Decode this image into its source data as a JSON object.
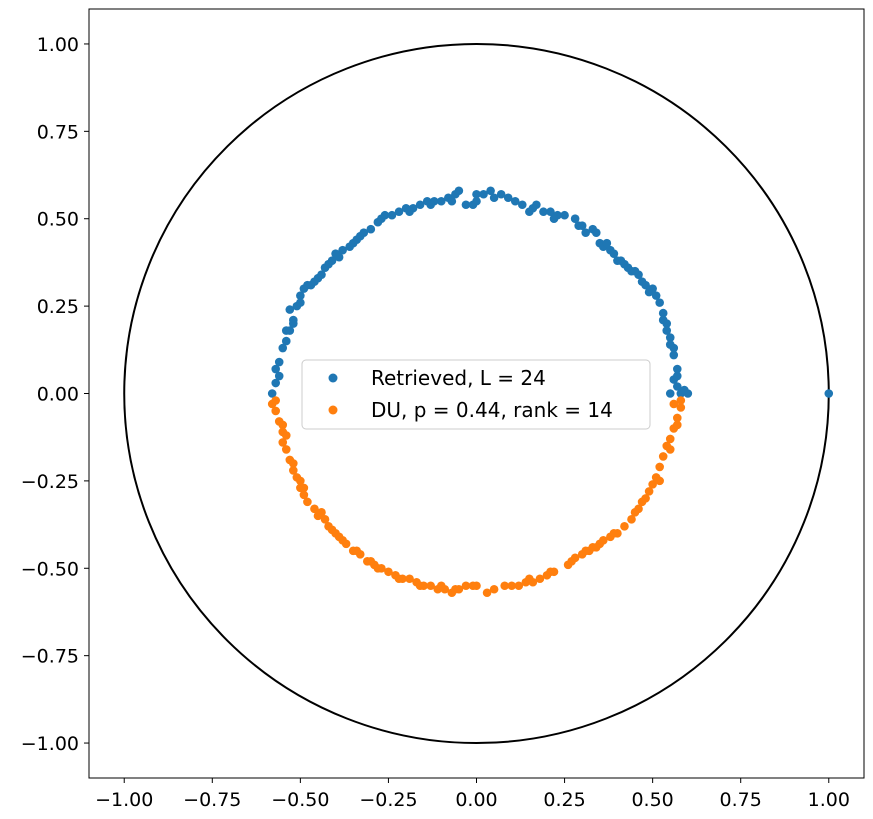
{
  "chart_data": {
    "type": "scatter",
    "title": "",
    "xlabel": "",
    "ylabel": "",
    "xlim": [
      -1.1,
      1.1
    ],
    "ylim": [
      -1.1,
      1.1
    ],
    "xticks": [
      "−1.00",
      "−0.75",
      "−0.50",
      "−0.25",
      "0.00",
      "0.25",
      "0.50",
      "0.75",
      "1.00"
    ],
    "yticks": [
      "1.00",
      "0.75",
      "0.50",
      "0.25",
      "0.00",
      "−0.25",
      "−0.50",
      "−0.75",
      "−1.00"
    ],
    "grid": false,
    "legend_position": "center",
    "reference_circle": {
      "center": [
        0,
        0
      ],
      "radius": 1.0,
      "color": "#000000"
    },
    "series": [
      {
        "name": "Retrieved, L = 24",
        "color": "#1f77b4",
        "marker": "circle",
        "points": [
          [
            -0.58,
            0.0
          ],
          [
            -0.57,
            0.03
          ],
          [
            -0.57,
            0.07
          ],
          [
            -0.56,
            0.09
          ],
          [
            -0.55,
            0.13
          ],
          [
            -0.54,
            0.15
          ],
          [
            -0.53,
            0.18
          ],
          [
            -0.52,
            0.21
          ],
          [
            -0.52,
            0.2
          ],
          [
            -0.51,
            0.25
          ],
          [
            -0.5,
            0.28
          ],
          [
            -0.49,
            0.3
          ],
          [
            -0.48,
            0.31
          ],
          [
            -0.47,
            0.31
          ],
          [
            -0.45,
            0.33
          ],
          [
            -0.44,
            0.34
          ],
          [
            -0.43,
            0.36
          ],
          [
            -0.42,
            0.37
          ],
          [
            -0.41,
            0.38
          ],
          [
            -0.39,
            0.39
          ],
          [
            -0.38,
            0.41
          ],
          [
            -0.36,
            0.42
          ],
          [
            -0.35,
            0.43
          ],
          [
            -0.33,
            0.45
          ],
          [
            -0.32,
            0.46
          ],
          [
            -0.3,
            0.47
          ],
          [
            -0.28,
            0.49
          ],
          [
            -0.26,
            0.51
          ],
          [
            -0.24,
            0.51
          ],
          [
            -0.22,
            0.52
          ],
          [
            -0.2,
            0.53
          ],
          [
            -0.18,
            0.53
          ],
          [
            -0.16,
            0.54
          ],
          [
            -0.14,
            0.55
          ],
          [
            -0.12,
            0.55
          ],
          [
            -0.1,
            0.55
          ],
          [
            -0.08,
            0.56
          ],
          [
            -0.06,
            0.57
          ],
          [
            -0.05,
            0.58
          ],
          [
            -0.03,
            0.54
          ],
          [
            -0.01,
            0.54
          ],
          [
            0.0,
            0.57
          ],
          [
            0.02,
            0.57
          ],
          [
            0.04,
            0.58
          ],
          [
            0.05,
            0.56
          ],
          [
            0.07,
            0.57
          ],
          [
            0.11,
            0.55
          ],
          [
            0.13,
            0.54
          ],
          [
            0.15,
            0.52
          ],
          [
            0.17,
            0.54
          ],
          [
            0.19,
            0.52
          ],
          [
            0.21,
            0.52
          ],
          [
            0.23,
            0.51
          ],
          [
            0.25,
            0.51
          ],
          [
            0.28,
            0.5
          ],
          [
            0.29,
            0.48
          ],
          [
            0.31,
            0.46
          ],
          [
            0.33,
            0.47
          ],
          [
            0.34,
            0.46
          ],
          [
            0.35,
            0.43
          ],
          [
            0.36,
            0.42
          ],
          [
            0.38,
            0.41
          ],
          [
            0.39,
            0.4
          ],
          [
            0.4,
            0.38
          ],
          [
            0.42,
            0.37
          ],
          [
            0.43,
            0.36
          ],
          [
            0.44,
            0.35
          ],
          [
            0.46,
            0.34
          ],
          [
            0.47,
            0.32
          ],
          [
            0.48,
            0.31
          ],
          [
            0.49,
            0.29
          ],
          [
            0.51,
            0.28
          ],
          [
            0.52,
            0.26
          ],
          [
            0.53,
            0.23
          ],
          [
            0.54,
            0.2
          ],
          [
            0.54,
            0.18
          ],
          [
            0.55,
            0.16
          ],
          [
            0.56,
            0.13
          ],
          [
            0.56,
            0.11
          ],
          [
            0.57,
            0.07
          ],
          [
            0.56,
            0.04
          ],
          [
            0.57,
            0.02
          ],
          [
            0.58,
            0.0
          ],
          [
            0.6,
            0.0
          ],
          [
            1.0,
            0.0
          ],
          [
            -0.54,
            0.18
          ],
          [
            -0.5,
            0.26
          ],
          [
            -0.46,
            0.32
          ],
          [
            -0.4,
            0.4
          ],
          [
            -0.34,
            0.44
          ],
          [
            -0.27,
            0.5
          ],
          [
            -0.19,
            0.52
          ],
          [
            -0.13,
            0.54
          ],
          [
            -0.07,
            0.55
          ],
          [
            0.0,
            0.55
          ],
          [
            0.09,
            0.56
          ],
          [
            0.16,
            0.53
          ],
          [
            0.22,
            0.5
          ],
          [
            0.3,
            0.48
          ],
          [
            0.37,
            0.43
          ],
          [
            0.41,
            0.38
          ],
          [
            0.45,
            0.35
          ],
          [
            0.5,
            0.3
          ],
          [
            0.53,
            0.21
          ],
          [
            0.55,
            0.14
          ],
          [
            -0.56,
            0.05
          ],
          [
            0.57,
            0.05
          ],
          [
            0.55,
            0.0
          ],
          [
            0.59,
            0.01
          ],
          [
            -0.53,
            0.24
          ]
        ]
      },
      {
        "name": "DU, p = 0.44, rank = 14",
        "color": "#ff7f0e",
        "marker": "circle",
        "points": [
          [
            -0.58,
            -0.03
          ],
          [
            -0.57,
            -0.05
          ],
          [
            -0.56,
            -0.08
          ],
          [
            -0.55,
            -0.11
          ],
          [
            -0.55,
            -0.14
          ],
          [
            -0.54,
            -0.16
          ],
          [
            -0.53,
            -0.19
          ],
          [
            -0.52,
            -0.22
          ],
          [
            -0.51,
            -0.24
          ],
          [
            -0.5,
            -0.27
          ],
          [
            -0.49,
            -0.29
          ],
          [
            -0.48,
            -0.31
          ],
          [
            -0.46,
            -0.33
          ],
          [
            -0.45,
            -0.35
          ],
          [
            -0.43,
            -0.36
          ],
          [
            -0.42,
            -0.38
          ],
          [
            -0.4,
            -0.4
          ],
          [
            -0.38,
            -0.42
          ],
          [
            -0.37,
            -0.43
          ],
          [
            -0.35,
            -0.45
          ],
          [
            -0.33,
            -0.46
          ],
          [
            -0.31,
            -0.48
          ],
          [
            -0.29,
            -0.49
          ],
          [
            -0.27,
            -0.5
          ],
          [
            -0.25,
            -0.51
          ],
          [
            -0.23,
            -0.52
          ],
          [
            -0.21,
            -0.53
          ],
          [
            -0.19,
            -0.53
          ],
          [
            -0.17,
            -0.54
          ],
          [
            -0.15,
            -0.55
          ],
          [
            -0.13,
            -0.55
          ],
          [
            -0.11,
            -0.56
          ],
          [
            -0.09,
            -0.56
          ],
          [
            -0.07,
            -0.57
          ],
          [
            -0.05,
            -0.56
          ],
          [
            -0.03,
            -0.55
          ],
          [
            -0.01,
            -0.55
          ],
          [
            0.03,
            -0.57
          ],
          [
            0.05,
            -0.56
          ],
          [
            0.1,
            -0.55
          ],
          [
            0.12,
            -0.55
          ],
          [
            0.14,
            -0.54
          ],
          [
            0.16,
            -0.54
          ],
          [
            0.18,
            -0.53
          ],
          [
            0.2,
            -0.52
          ],
          [
            0.22,
            -0.51
          ],
          [
            0.26,
            -0.49
          ],
          [
            0.27,
            -0.48
          ],
          [
            0.3,
            -0.46
          ],
          [
            0.32,
            -0.45
          ],
          [
            0.33,
            -0.44
          ],
          [
            0.35,
            -0.43
          ],
          [
            0.36,
            -0.42
          ],
          [
            0.38,
            -0.41
          ],
          [
            0.4,
            -0.4
          ],
          [
            0.42,
            -0.38
          ],
          [
            0.44,
            -0.36
          ],
          [
            0.46,
            -0.33
          ],
          [
            0.47,
            -0.31
          ],
          [
            0.49,
            -0.28
          ],
          [
            0.5,
            -0.26
          ],
          [
            0.51,
            -0.24
          ],
          [
            0.52,
            -0.21
          ],
          [
            0.53,
            -0.18
          ],
          [
            0.54,
            -0.15
          ],
          [
            0.55,
            -0.13
          ],
          [
            0.56,
            -0.1
          ],
          [
            0.57,
            -0.07
          ],
          [
            0.58,
            -0.04
          ],
          [
            0.58,
            -0.02
          ],
          [
            -0.57,
            -0.02
          ],
          [
            -0.54,
            -0.12
          ],
          [
            -0.52,
            -0.2
          ],
          [
            -0.49,
            -0.27
          ],
          [
            -0.44,
            -0.34
          ],
          [
            -0.39,
            -0.41
          ],
          [
            -0.34,
            -0.45
          ],
          [
            -0.28,
            -0.5
          ],
          [
            -0.22,
            -0.53
          ],
          [
            -0.16,
            -0.55
          ],
          [
            -0.1,
            -0.55
          ],
          [
            -0.06,
            -0.56
          ],
          [
            0.0,
            -0.55
          ],
          [
            0.08,
            -0.55
          ],
          [
            0.15,
            -0.53
          ],
          [
            0.21,
            -0.51
          ],
          [
            0.28,
            -0.47
          ],
          [
            0.34,
            -0.44
          ],
          [
            0.39,
            -0.4
          ],
          [
            0.45,
            -0.34
          ],
          [
            0.52,
            -0.25
          ],
          [
            0.55,
            -0.16
          ],
          [
            0.57,
            -0.09
          ],
          [
            0.56,
            -0.03
          ],
          [
            -0.55,
            -0.09
          ],
          [
            -0.5,
            -0.25
          ],
          [
            -0.41,
            -0.39
          ],
          [
            -0.3,
            -0.48
          ],
          [
            0.31,
            -0.45
          ],
          [
            0.48,
            -0.3
          ]
        ]
      }
    ]
  }
}
